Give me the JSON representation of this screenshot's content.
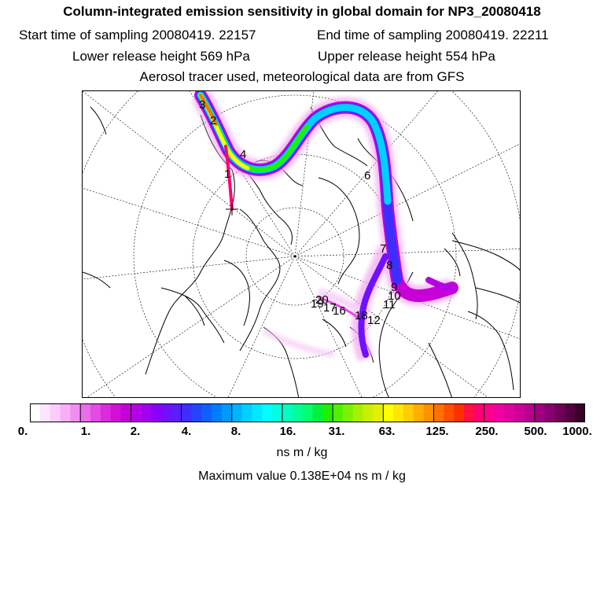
{
  "header": {
    "title": "Column-integrated emission sensitivity in global domain for NP3_20080418",
    "start_label": "Start time of sampling 20080419. 22157",
    "end_label": "End time of sampling 20080419. 22211",
    "lower_label": "Lower release height  569 hPa",
    "upper_label": "Upper release height  554 hPa",
    "note": "Aerosol tracer used, meteorological data are from GFS"
  },
  "map": {
    "projection": "north-polar-stereographic",
    "time_labels": [
      "1",
      "2",
      "3",
      "4",
      "6",
      "7",
      "8",
      "9",
      "10",
      "11",
      "12",
      "16",
      "17",
      "18",
      "19",
      "20"
    ]
  },
  "colorbar": {
    "tick_labels": [
      "0.",
      "1.",
      "2.",
      "4.",
      "8.",
      "16.",
      "31.",
      "63.",
      "125.",
      "250.",
      "500.",
      "1000."
    ],
    "colors": [
      "#ffffff",
      "#fde6fd",
      "#fbcdfb",
      "#f7b0f7",
      "#f08ef0",
      "#ea6dea",
      "#e34be3",
      "#dc2bdc",
      "#d40fd4",
      "#c800d8",
      "#b600e6",
      "#a300f0",
      "#8a00f8",
      "#7010ff",
      "#5a1fff",
      "#3d2eff",
      "#2445ff",
      "#1060ff",
      "#007cff",
      "#0098ff",
      "#00b4ff",
      "#00d0ff",
      "#00e8ff",
      "#00ffff",
      "#00ffe0",
      "#00ffbe",
      "#00ff9a",
      "#00ff70",
      "#00f040",
      "#20f000",
      "#50f000",
      "#7cf000",
      "#a6f000",
      "#c8f000",
      "#e4f000",
      "#ffff00",
      "#ffe600",
      "#ffcc00",
      "#ffae00",
      "#ff9000",
      "#ff7000",
      "#ff5000",
      "#ff3000",
      "#ff1040",
      "#ff0070",
      "#ff0090",
      "#f000a0",
      "#e000a0",
      "#cc0099",
      "#b80090",
      "#a00080",
      "#880070",
      "#6e0058",
      "#540040",
      "#3a002c"
    ],
    "unit": "ns m / kg"
  },
  "max_value_label": "Maximum value  0.138E+04 ns m / kg"
}
